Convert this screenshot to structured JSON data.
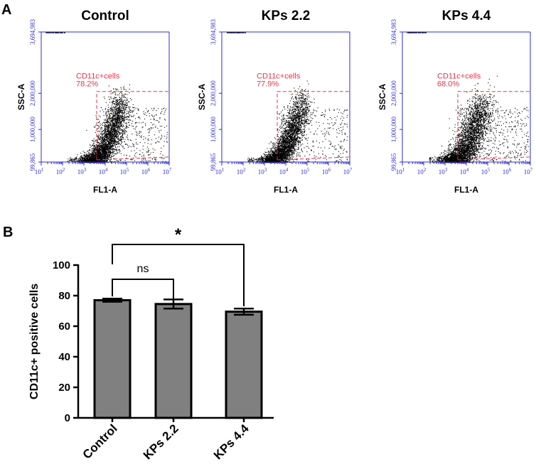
{
  "panel_a_label": "A",
  "panel_b_label": "B",
  "chart_data": [
    {
      "type": "scatter",
      "title": "Control",
      "xlabel": "FL1-A",
      "ylabel": "SSC-A",
      "x_scale": "log",
      "x_ticks": [
        "1",
        "2",
        "3",
        "4",
        "5",
        "6",
        "7"
      ],
      "x_tick_base": "10",
      "y_tick_labels": [
        "99,865",
        "1,000,000",
        "2,000,000",
        "3,694,983"
      ],
      "y_tick_values": [
        99865,
        1000000,
        2000000,
        3694983
      ],
      "ylim": [
        99865,
        3694983
      ],
      "xlim_log10": [
        1,
        7
      ],
      "gate": {
        "name": "CD11c+cells",
        "percent": "78.2%",
        "x_log10": [
          3.6,
          7.0
        ],
        "y": [
          99865,
          2050000
        ]
      },
      "population": {
        "seed": 11,
        "spread": 1.0
      }
    },
    {
      "type": "scatter",
      "title": "KPs 2.2",
      "xlabel": "FL1-A",
      "ylabel": "SSC-A",
      "x_scale": "log",
      "x_ticks": [
        "1",
        "2",
        "3",
        "4",
        "5",
        "6",
        "7"
      ],
      "x_tick_base": "10",
      "y_tick_labels": [
        "99,865",
        "1,000,000",
        "2,000,000",
        "3,694,983"
      ],
      "y_tick_values": [
        99865,
        1000000,
        2000000,
        3694983
      ],
      "ylim": [
        99865,
        3694983
      ],
      "xlim_log10": [
        1,
        7
      ],
      "gate": {
        "name": "CD11c+cells",
        "percent": "77.9%",
        "x_log10": [
          3.6,
          7.0
        ],
        "y": [
          99865,
          2050000
        ]
      },
      "population": {
        "seed": 23,
        "spread": 0.9
      }
    },
    {
      "type": "scatter",
      "title": "KPs 4.4",
      "xlabel": "FL1-A",
      "ylabel": "SSC-A",
      "x_scale": "log",
      "x_ticks": [
        "1",
        "2",
        "3",
        "4",
        "5",
        "6",
        "7"
      ],
      "x_tick_base": "10",
      "y_tick_labels": [
        "99,865",
        "1,000,000",
        "2,000,000",
        "3,694,983"
      ],
      "y_tick_values": [
        99865,
        1000000,
        2000000,
        3694983
      ],
      "ylim": [
        99865,
        3694983
      ],
      "xlim_log10": [
        1,
        7
      ],
      "gate": {
        "name": "CD11c+cells",
        "percent": "68.0%",
        "x_log10": [
          3.6,
          7.0
        ],
        "y": [
          99865,
          2050000
        ]
      },
      "population": {
        "seed": 37,
        "spread": 1.15
      }
    },
    {
      "type": "bar",
      "title": "",
      "categories": [
        "Control",
        "KPs 2.2",
        "KPs 4.4"
      ],
      "values": [
        77,
        74.5,
        69.5
      ],
      "errors": [
        1,
        3,
        2
      ],
      "xlabel": "",
      "ylabel": "CD11c+ positive cells",
      "ylim": [
        0,
        100
      ],
      "yticks": [
        0,
        20,
        40,
        60,
        80,
        100
      ],
      "y_tick_labels": [
        "0",
        "20",
        "40",
        "60",
        "80",
        "100"
      ],
      "significance": [
        {
          "from": 0,
          "to": 1,
          "label": "ns"
        },
        {
          "from": 0,
          "to": 2,
          "label": "*"
        }
      ],
      "colors": {
        "bar_fill": "#808080",
        "bar_edge": "#000000"
      }
    }
  ],
  "colors": {
    "flow_axis": "#2b2bd9",
    "gate": "#e8334a",
    "dots": "#000000"
  }
}
